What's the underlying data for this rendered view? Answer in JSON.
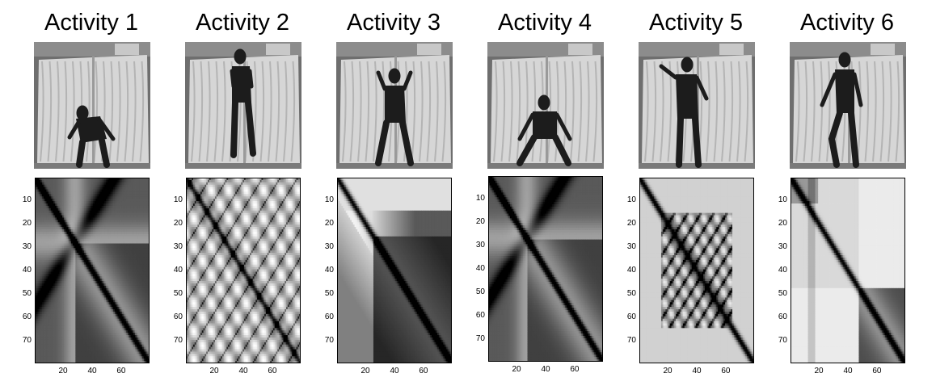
{
  "activities": [
    {
      "title": "Activity 1",
      "pose": "bending",
      "matrix": {
        "pattern": "single-cross",
        "cross_at": 28,
        "range": [
          1,
          79
        ]
      },
      "xticks": [
        "20",
        "40",
        "60"
      ],
      "yticks": [
        "10",
        "20",
        "30",
        "40",
        "50",
        "60",
        "70"
      ]
    },
    {
      "title": "Activity 2",
      "pose": "jumping-jack",
      "matrix": {
        "pattern": "periodic",
        "period": 12,
        "range": [
          1,
          79
        ]
      },
      "xticks": [
        "20",
        "40",
        "60"
      ],
      "yticks": [
        "10",
        "20",
        "30",
        "40",
        "50",
        "60",
        "70"
      ]
    },
    {
      "title": "Activity 3",
      "pose": "arms-up",
      "matrix": {
        "pattern": "block",
        "range": [
          1,
          79
        ]
      },
      "xticks": [
        "20",
        "40",
        "60"
      ],
      "yticks": [
        "10",
        "20",
        "30",
        "40",
        "50",
        "60",
        "70"
      ]
    },
    {
      "title": "Activity 4",
      "pose": "squat",
      "matrix": {
        "pattern": "single-cross",
        "cross_at": 27,
        "range": [
          1,
          79
        ]
      },
      "xticks": [
        "20",
        "40",
        "60"
      ],
      "yticks": [
        "10",
        "20",
        "30",
        "40",
        "50",
        "60",
        "70"
      ]
    },
    {
      "title": "Activity 5",
      "pose": "waving",
      "matrix": {
        "pattern": "periodic-local",
        "period": 9,
        "range": [
          1,
          79
        ]
      },
      "xticks": [
        "20",
        "40",
        "60"
      ],
      "yticks": [
        "10",
        "20",
        "30",
        "40",
        "50",
        "60",
        "70"
      ]
    },
    {
      "title": "Activity 6",
      "pose": "leg-raise",
      "matrix": {
        "pattern": "two-blocks",
        "split_at": 48,
        "range": [
          1,
          79
        ]
      },
      "xticks": [
        "20",
        "40",
        "60"
      ],
      "yticks": [
        "10",
        "20",
        "30",
        "40",
        "50",
        "60",
        "70"
      ]
    }
  ]
}
